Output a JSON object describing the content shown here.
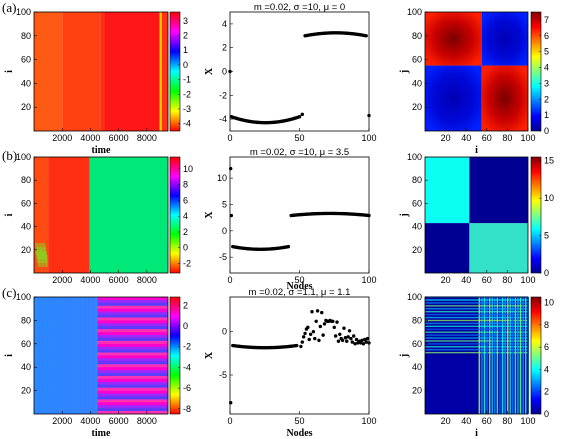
{
  "rows": [
    {
      "label": "(a)",
      "space_time": {
        "xlabel": "time",
        "ylabel": "i",
        "x_ticks": [
          "2000",
          "4000",
          "6000",
          "8000"
        ],
        "y_ticks": [
          "20",
          "40",
          "60",
          "80",
          "100"
        ],
        "xlim": [
          0,
          9500
        ],
        "ylim": [
          0,
          100
        ],
        "colorbar": {
          "range": [
            -4.5,
            3.6
          ],
          "ticks": [
            "3",
            "2",
            "1",
            "0",
            "-1",
            "-2",
            "-3",
            "-4"
          ],
          "colormap": "hsv"
        },
        "pattern": "blocks",
        "blocks": [
          {
            "x_range": [
              0,
              2000
            ],
            "color": "#ff5a14"
          },
          {
            "x_range": [
              2000,
              4700
            ],
            "color": "#ff4010"
          },
          {
            "x_range": [
              4700,
              5000
            ],
            "color": "#ff2e12"
          },
          {
            "x_range": [
              5000,
              8900
            ],
            "color": "#ff1616"
          },
          {
            "x_range": [
              8900,
              9050
            ],
            "color": "#ffd200"
          },
          {
            "x_range": [
              9050,
              9500
            ],
            "color": "#ff3414"
          }
        ]
      },
      "snapshot": {
        "title": "m =0.02, σ =10,  μ = 0",
        "xlabel": "",
        "ylabel": "X",
        "x_ticks": [
          "0",
          "50",
          "100"
        ],
        "y_ticks": [
          "-4",
          "-2",
          "0",
          "2",
          "4"
        ],
        "xlim": [
          0,
          100
        ],
        "ylim": [
          -5,
          5
        ],
        "clusters": [
          {
            "x": [
              1,
              50
            ],
            "y": "parabola",
            "y_end": -3.8,
            "y_mid": -4.3
          },
          {
            "x": [
              54,
              98
            ],
            "y": "parabola",
            "y_end": 3.0,
            "y_mid": 3.25
          }
        ],
        "points": [
          [
            0,
            0
          ],
          [
            52,
            -3.6
          ],
          [
            100,
            -3.7
          ]
        ]
      },
      "matrix": {
        "xlabel": "i",
        "ylabel": "j",
        "x_ticks": [
          "20",
          "40",
          "60",
          "80",
          "100"
        ],
        "y_ticks": [
          "20",
          "40",
          "60",
          "80",
          "100"
        ],
        "xlim": [
          0,
          100
        ],
        "ylim": [
          0,
          100
        ],
        "split": 55,
        "colorbar": {
          "range": [
            0,
            7.5
          ],
          "ticks": [
            "7",
            "6",
            "5",
            "4",
            "3",
            "2",
            "1",
            "0"
          ],
          "colormap": "jet"
        },
        "blocks": {
          "same": 7.0,
          "cross": 0.4
        }
      }
    },
    {
      "label": "(b)",
      "space_time": {
        "xlabel": "",
        "ylabel": "i",
        "x_ticks": [
          "2000",
          "4000",
          "6000",
          "8000"
        ],
        "y_ticks": [
          "20",
          "40",
          "60",
          "80",
          "100"
        ],
        "xlim": [
          0,
          9500
        ],
        "ylim": [
          0,
          100
        ],
        "colorbar": {
          "range": [
            -3.2,
            11.5
          ],
          "ticks": [
            "10",
            "8",
            "6",
            "4",
            "2",
            "0",
            "-2"
          ],
          "colormap": "hsv"
        },
        "pattern": "blocks",
        "blocks": [
          {
            "x_range": [
              0,
              1000
            ],
            "color": "#ff4a12"
          },
          {
            "x_range": [
              1000,
              3950
            ],
            "color": "#ff3012"
          },
          {
            "x_range": [
              3950,
              9500
            ],
            "color": "#00e878"
          }
        ]
      },
      "snapshot": {
        "title": "m =0.02, σ =10,  μ = 3.5",
        "xlabel": "Nodes",
        "ylabel": "X",
        "x_ticks": [
          "0",
          "50",
          "100"
        ],
        "y_ticks": [
          "-5",
          "0",
          "5",
          "10"
        ],
        "xlim": [
          0,
          100
        ],
        "ylim": [
          -8,
          14
        ],
        "clusters": [
          {
            "x": [
              2,
              42
            ],
            "y": "parabola",
            "y_end": -3.0,
            "y_mid": -3.5
          },
          {
            "x": [
              44,
              100
            ],
            "y": "parabola",
            "y_end": 2.9,
            "y_mid": 3.3
          }
        ],
        "points": [
          [
            0.5,
            11.8
          ],
          [
            1,
            2.9
          ]
        ]
      },
      "matrix": {
        "xlabel": "",
        "ylabel": "j",
        "x_ticks": [
          "20",
          "40",
          "60",
          "80",
          "100"
        ],
        "y_ticks": [
          "20",
          "40",
          "60",
          "80",
          "100"
        ],
        "xlim": [
          0,
          100
        ],
        "ylim": [
          0,
          100
        ],
        "split": 43,
        "colorbar": {
          "range": [
            0,
            15.5
          ],
          "ticks": [
            "15",
            "10",
            "5",
            "0"
          ],
          "colormap": "jet"
        },
        "blocks": {
          "same": 6.0,
          "cross": 0.3
        }
      }
    },
    {
      "label": "(c)",
      "space_time": {
        "xlabel": "time",
        "ylabel": "i",
        "x_ticks": [
          "2000",
          "4000",
          "6000",
          "8000"
        ],
        "y_ticks": [
          "20",
          "40",
          "60",
          "80",
          "100"
        ],
        "xlim": [
          0,
          9500
        ],
        "ylim": [
          0,
          100
        ],
        "colorbar": {
          "range": [
            -8.5,
            2.8
          ],
          "ticks": [
            "2",
            "0",
            "-2",
            "-4",
            "-6",
            "-8"
          ],
          "colormap": "hsv"
        },
        "pattern": "split",
        "left_color": "#2c8cff",
        "split_x": 4500,
        "stripe_colors": [
          "#ff00cc",
          "#9a28ff",
          "#5a3cff",
          "#ff32b4"
        ]
      },
      "snapshot": {
        "title": "m =0.02, σ =1.1,  μ = 1.1",
        "xlabel": "Nodes",
        "ylabel": "X",
        "x_ticks": [
          "0",
          "50",
          "100"
        ],
        "y_ticks": [
          "-5",
          "0"
        ],
        "xlim": [
          0,
          100
        ],
        "ylim": [
          -9.5,
          4
        ],
        "clusters": [
          {
            "x": [
              2,
              48
            ],
            "y": "parabola",
            "y_end": -1.6,
            "y_mid": -1.85
          }
        ],
        "points": [
          [
            0.5,
            -8.2
          ],
          [
            51,
            -1.7
          ],
          [
            52,
            -1.2
          ],
          [
            53,
            -0.6
          ],
          [
            54,
            -0.2
          ],
          [
            55,
            0.3
          ],
          [
            56,
            0.5
          ],
          [
            57,
            -0.9
          ],
          [
            58,
            -0.3
          ],
          [
            59,
            2.3
          ],
          [
            60,
            0.0
          ],
          [
            61,
            -0.8
          ],
          [
            62,
            1.2
          ],
          [
            63,
            2.4
          ],
          [
            64,
            -1.0
          ],
          [
            65,
            0.6
          ],
          [
            66,
            2.2
          ],
          [
            67,
            -0.4
          ],
          [
            68,
            0.9
          ],
          [
            69,
            1.3
          ],
          [
            70,
            1.2
          ],
          [
            71,
            1.2
          ],
          [
            72,
            1.3
          ],
          [
            73,
            1.2
          ],
          [
            74,
            1.2
          ],
          [
            75,
            0.5
          ],
          [
            76,
            -0.5
          ],
          [
            77,
            1.1
          ],
          [
            78,
            -1.1
          ],
          [
            79,
            -0.3
          ],
          [
            80,
            -0.8
          ],
          [
            81,
            -1.0
          ],
          [
            82,
            0.4
          ],
          [
            83,
            -0.7
          ],
          [
            84,
            -1.1
          ],
          [
            85,
            -0.6
          ],
          [
            86,
            0.1
          ],
          [
            87,
            -0.8
          ],
          [
            88,
            -1.2
          ],
          [
            89,
            -0.5
          ],
          [
            90,
            -1.4
          ],
          [
            91,
            -0.9
          ],
          [
            92,
            -1.3
          ],
          [
            93,
            -1.1
          ],
          [
            94,
            -1.3
          ],
          [
            95,
            -1.0
          ],
          [
            96,
            -1.4
          ],
          [
            97,
            -0.9
          ],
          [
            98,
            -1.2
          ],
          [
            99,
            -0.8
          ],
          [
            100,
            -1.3
          ]
        ]
      },
      "matrix": {
        "xlabel": "i",
        "ylabel": "j",
        "x_ticks": [
          "20",
          "40",
          "60",
          "80",
          "100"
        ],
        "y_ticks": [
          "20",
          "40",
          "60",
          "80",
          "100"
        ],
        "xlim": [
          0,
          100
        ],
        "ylim": [
          0,
          100
        ],
        "split": 50,
        "colorbar": {
          "range": [
            0,
            10.5
          ],
          "ticks": [
            "10",
            "8",
            "6",
            "4",
            "2",
            "0"
          ],
          "colormap": "jet"
        },
        "blocks": {
          "same": 0.3,
          "cross": 0.4
        },
        "noise_region": [
          50,
          100
        ]
      }
    }
  ]
}
